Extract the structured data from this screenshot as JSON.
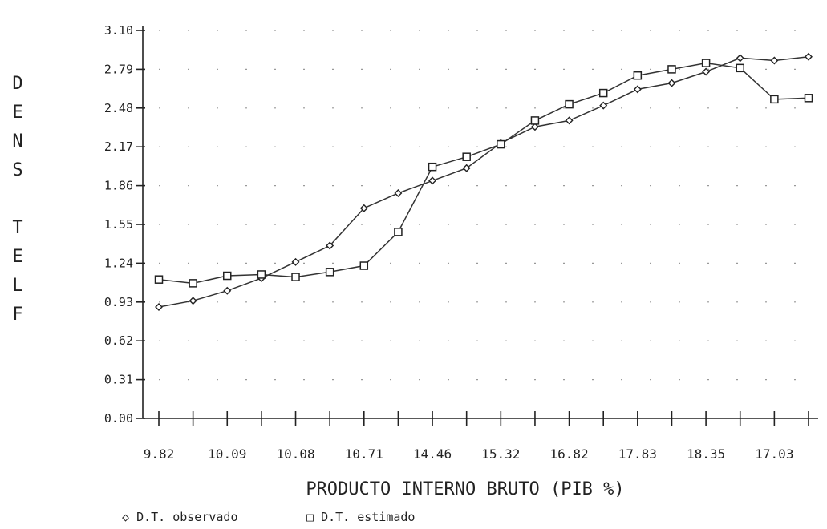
{
  "chart_data": {
    "type": "line",
    "xlabel": "PRODUCTO INTERNO BRUTO (PIB %)",
    "ylabel_letters": [
      "D",
      "E",
      "N",
      "S",
      "",
      "T",
      "E",
      "L",
      "F"
    ],
    "y_ticks": [
      "0.00",
      "0.31",
      "0.62",
      "0.93",
      "1.24",
      "1.55",
      "1.86",
      "2.17",
      "2.48",
      "2.79",
      "3.10"
    ],
    "x_tick_labels": [
      "9.82",
      "10.09",
      "10.08",
      "10.71",
      "14.46",
      "15.32",
      "16.82",
      "17.83",
      "18.35",
      "17.03"
    ],
    "ylim": [
      0,
      3.1
    ],
    "grid": "dotted",
    "legend_position": "bottom-left",
    "legend": [
      "D.T. observado",
      "D.T. estimado"
    ],
    "series": [
      {
        "name": "D.T. observado",
        "marker": "diamond",
        "values": [
          0.89,
          0.94,
          1.02,
          1.12,
          1.25,
          1.38,
          1.68,
          1.8,
          1.9,
          2.0,
          2.2,
          2.33,
          2.38,
          2.5,
          2.63,
          2.68,
          2.77,
          2.88,
          2.86,
          2.89
        ]
      },
      {
        "name": "D.T. estimado",
        "marker": "square",
        "values": [
          1.11,
          1.08,
          1.14,
          1.15,
          1.13,
          1.17,
          1.22,
          1.49,
          2.01,
          2.09,
          2.19,
          2.38,
          2.51,
          2.6,
          2.74,
          2.79,
          2.84,
          2.8,
          2.55,
          2.56
        ]
      }
    ]
  }
}
